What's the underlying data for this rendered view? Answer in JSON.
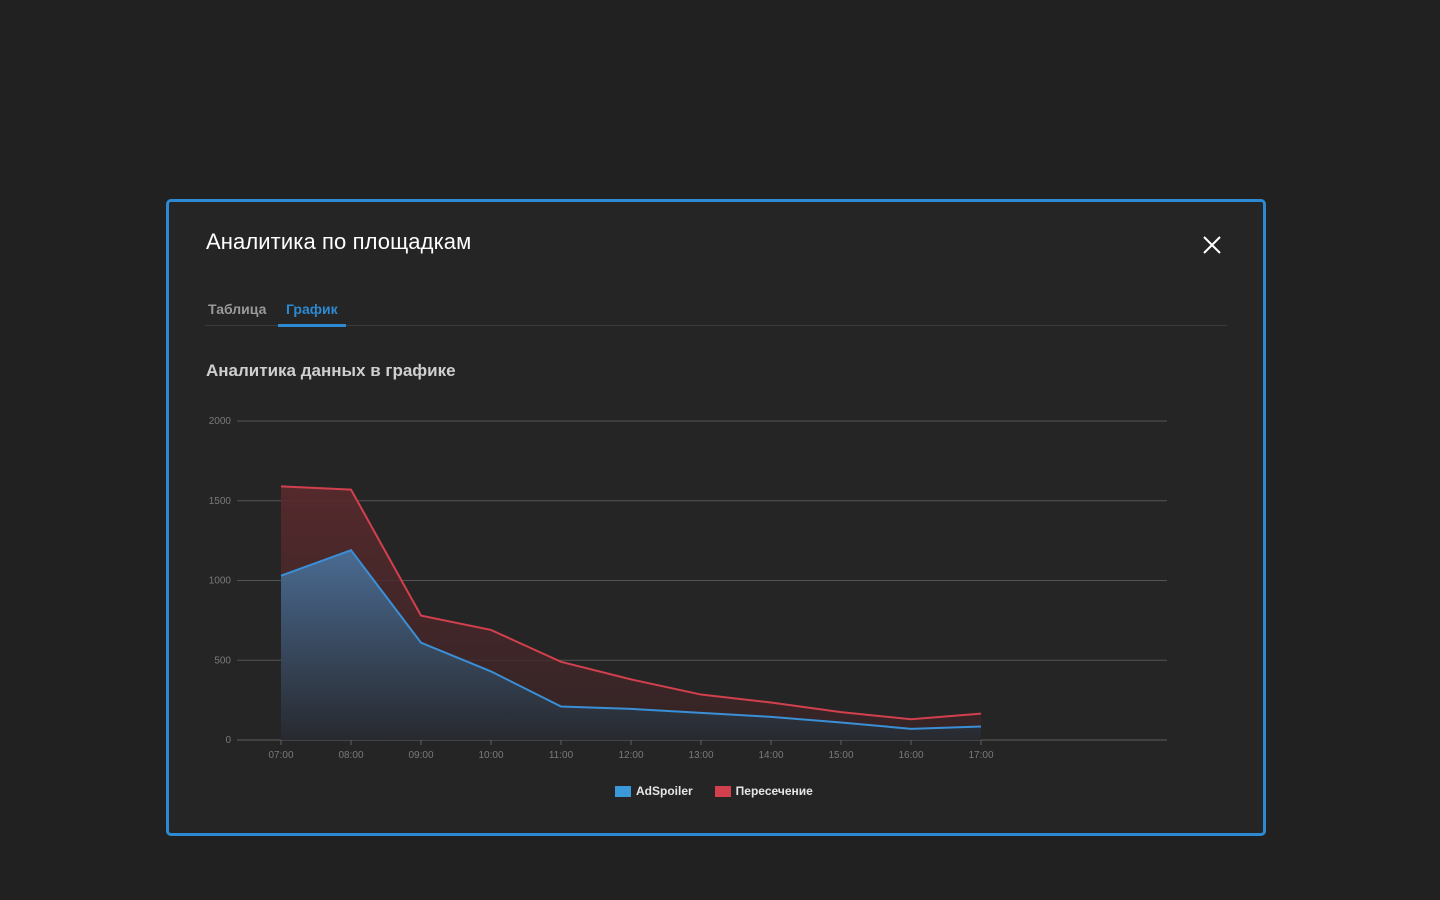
{
  "modal": {
    "title": "Аналитика по площадкам",
    "accent_color": "#2d8ad2"
  },
  "tabs": [
    {
      "label": "Таблица",
      "active": false
    },
    {
      "label": "График",
      "active": true
    }
  ],
  "chart_section": {
    "title": "Аналитика данных в графике"
  },
  "chart_data": {
    "type": "area",
    "title": "Аналитика данных в графике",
    "categories": [
      "07:00",
      "08:00",
      "09:00",
      "10:00",
      "11:00",
      "12:00",
      "13:00",
      "14:00",
      "15:00",
      "16:00",
      "17:00"
    ],
    "yticks": [
      0,
      500,
      1000,
      1500,
      2000
    ],
    "ylim": [
      0,
      2000
    ],
    "grid": true,
    "legend": "bottom-center",
    "series": [
      {
        "name": "AdSpoiler",
        "color": "#3a8fd6",
        "values": [
          1030,
          1190,
          610,
          430,
          210,
          195,
          170,
          145,
          110,
          70,
          85
        ]
      },
      {
        "name": "Пересечение",
        "color": "#d2404e",
        "values": [
          1590,
          1570,
          780,
          690,
          490,
          380,
          285,
          235,
          175,
          130,
          165
        ]
      }
    ]
  }
}
